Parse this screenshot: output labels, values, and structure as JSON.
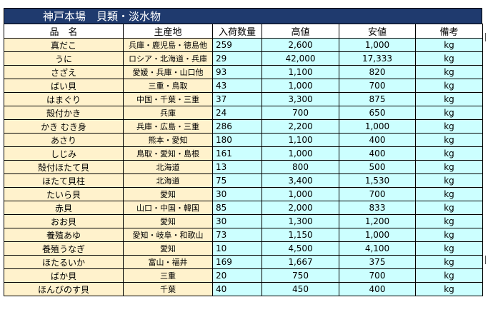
{
  "title": "神戸本場　貝類・淡水物",
  "headers": {
    "name": "品　名",
    "origin": "主産地",
    "quantity": "入荷数量",
    "high": "高値",
    "low": "安値",
    "note": "備考"
  },
  "rows": [
    {
      "name": "真だこ",
      "origin": "兵庫・鹿児島・徳島他",
      "quantity": "259",
      "high": "2,600",
      "low": "1,000",
      "unit": "kg"
    },
    {
      "name": "うに",
      "origin": "ロシア・北海道・兵庫",
      "quantity": "29",
      "high": "42,000",
      "low": "17,333",
      "unit": "kg"
    },
    {
      "name": "さざえ",
      "origin": "愛媛・兵庫・山口他",
      "quantity": "93",
      "high": "1,100",
      "low": "820",
      "unit": "kg"
    },
    {
      "name": "ばい貝",
      "origin": "三重・鳥取",
      "quantity": "43",
      "high": "1,000",
      "low": "700",
      "unit": "kg"
    },
    {
      "name": "はまぐり",
      "origin": "中国・千葉・三重",
      "quantity": "37",
      "high": "3,300",
      "low": "875",
      "unit": "kg"
    },
    {
      "name": "殻付かき",
      "origin": "兵庫",
      "quantity": "24",
      "high": "700",
      "low": "650",
      "unit": "kg"
    },
    {
      "name": "かき むき身",
      "origin": "兵庫・広島・三重",
      "quantity": "286",
      "high": "2,200",
      "low": "1,000",
      "unit": "kg"
    },
    {
      "name": "あさり",
      "origin": "熊本・愛知",
      "quantity": "180",
      "high": "1,100",
      "low": "400",
      "unit": "kg"
    },
    {
      "name": "しじみ",
      "origin": "鳥取・愛知・島根",
      "quantity": "161",
      "high": "1,000",
      "low": "400",
      "unit": "kg"
    },
    {
      "name": "殻付ほたて貝",
      "origin": "北海道",
      "quantity": "13",
      "high": "800",
      "low": "500",
      "unit": "kg"
    },
    {
      "name": "ほたて貝柱",
      "origin": "北海道",
      "quantity": "75",
      "high": "3,400",
      "low": "1,530",
      "unit": "kg"
    },
    {
      "name": "たいら貝",
      "origin": "愛知",
      "quantity": "30",
      "high": "1,000",
      "low": "700",
      "unit": "kg"
    },
    {
      "name": "赤貝",
      "origin": "山口・中国・韓国",
      "quantity": "85",
      "high": "2,000",
      "low": "833",
      "unit": "kg"
    },
    {
      "name": "おお貝",
      "origin": "愛知",
      "quantity": "30",
      "high": "1,300",
      "low": "1,200",
      "unit": "kg"
    },
    {
      "name": "養殖あゆ",
      "origin": "愛知・岐阜・和歌山",
      "quantity": "73",
      "high": "1,150",
      "low": "1,000",
      "unit": "kg"
    },
    {
      "name": "養殖うなぎ",
      "origin": "愛知",
      "quantity": "10",
      "high": "4,500",
      "low": "4,100",
      "unit": "kg"
    },
    {
      "name": "ほたるいか",
      "origin": "富山・福井",
      "quantity": "169",
      "high": "1,667",
      "low": "375",
      "unit": "kg"
    },
    {
      "name": "ばか貝",
      "origin": "三重",
      "quantity": "20",
      "high": "750",
      "low": "700",
      "unit": "kg"
    },
    {
      "name": "ほんびのす貝",
      "origin": "千葉",
      "quantity": "40",
      "high": "450",
      "low": "400",
      "unit": "kg"
    }
  ]
}
